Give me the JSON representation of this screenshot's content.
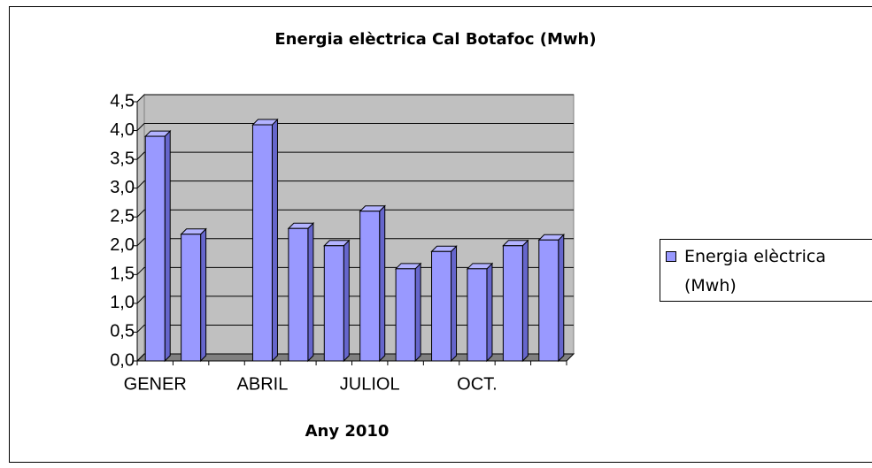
{
  "chart_data": {
    "type": "bar",
    "title": "Energia elèctrica Cal Botafoc (Mwh)",
    "x_label": "Any 2010",
    "categories": [
      "GENER",
      null,
      null,
      "ABRIL",
      null,
      null,
      "JULIOL",
      null,
      null,
      "OCT.",
      null,
      null
    ],
    "series": [
      {
        "name": "Energia elèctrica (Mwh)",
        "color": "#9999ff",
        "values": [
          3.9,
          2.2,
          null,
          4.1,
          2.3,
          2.0,
          2.6,
          1.6,
          1.9,
          1.6,
          2.0,
          2.1
        ]
      }
    ],
    "ylim": [
      0,
      4.5
    ],
    "yticks": [
      {
        "value": 0,
        "label": "0,0"
      },
      {
        "value": 0.5,
        "label": "0,5"
      },
      {
        "value": 1,
        "label": "1,0"
      },
      {
        "value": 1.5,
        "label": "1,5"
      },
      {
        "value": 2,
        "label": "2,0"
      },
      {
        "value": 2.5,
        "label": "2,5"
      },
      {
        "value": 3,
        "label": "3,0"
      },
      {
        "value": 3.5,
        "label": "3,5"
      },
      {
        "value": 4,
        "label": "4,0"
      },
      {
        "value": 4.5,
        "label": "4,5"
      }
    ],
    "grid": true,
    "legend": "right"
  }
}
